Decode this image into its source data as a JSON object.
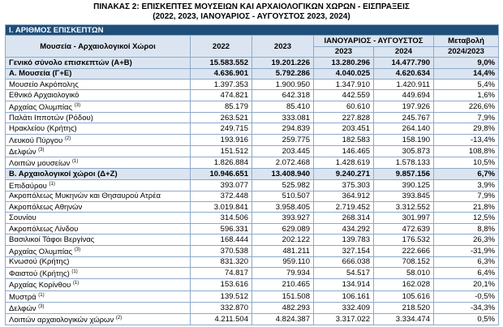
{
  "header": {
    "title": "ΠΙΝΑΚΑΣ 2: ΕΠΙΣΚΕΠΤΕΣ ΜΟΥΣΕΙΩΝ ΚΑΙ ΑΡΧΑΙΟΛΟΓΙΚΩΝ ΧΩΡΩΝ - ΕΙΣΠΡΑΞΕΙΣ",
    "subtitle": "(2022, 2023, ΙΑΝΟΥΑΡΙΟΣ - ΑΥΓΟΥΣΤΟΣ 2023, 2024)"
  },
  "table": {
    "section": "I. ΑΡΙΘΜΟΣ ΕΠΙΣΚΕΠΤΩΝ",
    "columns": {
      "name": "Μουσεία - Αρχαιολογικοί Χώροι",
      "y2022": "2022",
      "y2023": "2023",
      "period": "ΙΑΝΟΥΑΡΙΟΣ - ΑΥΓΟΥΣΤΟΣ",
      "p2023": "2023",
      "p2024": "2024",
      "change": "Μεταβολή",
      "change_period": "2024/2023"
    },
    "rows": [
      {
        "name": "Γενικό σύνολο επισκεπτών (Α+Β)",
        "cells": [
          "15.583.552",
          "19.201.226",
          "13.280.296",
          "14.477.790",
          "9,0%"
        ]
      },
      {
        "name": "Α. Μουσεία (Γ+Ε)",
        "cells": [
          "4.636.901",
          "5.792.286",
          "4.040.025",
          "4.620.634",
          "14,4%"
        ]
      },
      {
        "name": "Μουσείο Ακρόπολης",
        "cells": [
          "1.397.353",
          "1.900.950",
          "1.347.910",
          "1.420.911",
          "5,4%"
        ]
      },
      {
        "name": "Εθνικό Αρχαιολογικό",
        "cells": [
          "474.821",
          "642.318",
          "442.559",
          "449.694",
          "1,6%"
        ]
      },
      {
        "name": "Αρχαίας Ολυμπίας",
        "note": "(3)",
        "cells": [
          "85.179",
          "85.410",
          "60.610",
          "197.926",
          "226,6%"
        ]
      },
      {
        "name": "Παλάτι Ιπποτών (Ρόδου)",
        "cells": [
          "263.521",
          "333.081",
          "227.828",
          "245.767",
          "7,9%"
        ]
      },
      {
        "name": "Ηρακλείου (Κρήτης)",
        "cells": [
          "249.715",
          "294.839",
          "203.451",
          "264.140",
          "29,8%"
        ]
      },
      {
        "name": "Λευκού Πύργου",
        "note": "(2)",
        "cells": [
          "193.916",
          "259.775",
          "182.583",
          "158.190",
          "-13,4%"
        ]
      },
      {
        "name": "Δελφών",
        "note": "(3)",
        "cells": [
          "151.512",
          "203.445",
          "146.465",
          "305.873",
          "108,8%"
        ]
      },
      {
        "name": "Λοιπών μουσείων",
        "note": "(1)",
        "cells": [
          "1.826.884",
          "2.072.468",
          "1.428.619",
          "1.578.133",
          "10,5%"
        ]
      },
      {
        "name": "Β. Αρχαιολογικοί χώροι (Δ+Ζ)",
        "cells": [
          "10.946.651",
          "13.408.940",
          "9.240.271",
          "9.857.156",
          "6,7%"
        ]
      },
      {
        "name": "Επιδαύρου",
        "note": "(1)",
        "cells": [
          "393.077",
          "525.982",
          "375.303",
          "390.125",
          "3,9%"
        ]
      },
      {
        "name": "Ακροπόλεως Μυκηνών και Θησαυρού Ατρέα",
        "cells": [
          "372.448",
          "510.507",
          "364.912",
          "393.845",
          "7,9%"
        ]
      },
      {
        "name": "Ακροπόλεως Αθηνών",
        "cells": [
          "3.019.841",
          "3.958.405",
          "2.719.452",
          "3.312.552",
          "21,8%"
        ]
      },
      {
        "name": "Σουνίου",
        "cells": [
          "314.506",
          "393.927",
          "268.314",
          "301.997",
          "12,5%"
        ]
      },
      {
        "name": "Ακροπόλεως Λίνδου",
        "cells": [
          "596.331",
          "629.089",
          "434.292",
          "472.639",
          "8,8%"
        ]
      },
      {
        "name": "Βασιλικοί Τάφοι Βεργίνας",
        "cells": [
          "168.444",
          "202.122",
          "139.783",
          "176.532",
          "26,3%"
        ]
      },
      {
        "name": "Αρχαίας Ολυμπίας",
        "note": "(3)",
        "cells": [
          "370.538",
          "481.211",
          "327.154",
          "222.666",
          "-31,9%"
        ]
      },
      {
        "name": "Κνωσού (Κρήτης)",
        "cells": [
          "831.320",
          "959.110",
          "666.038",
          "708.152",
          "6,3%"
        ]
      },
      {
        "name": "Φαιστού (Κρήτης)",
        "note": "(1)",
        "cells": [
          "74.817",
          "79.934",
          "54.517",
          "58.010",
          "6,4%"
        ]
      },
      {
        "name": "Αρχαίας Κορίνθου",
        "note": "(1)",
        "cells": [
          "153.616",
          "210.465",
          "134.914",
          "162.028",
          "20,1%"
        ]
      },
      {
        "name": "Μυστρά",
        "note": "(1)",
        "cells": [
          "139.512",
          "151.508",
          "106.161",
          "105.616",
          "-0,5%"
        ]
      },
      {
        "name": "Δελφών",
        "note": "(3)",
        "cells": [
          "332.870",
          "482.293",
          "332.409",
          "218.520",
          "-34,3%"
        ]
      },
      {
        "name": "Λοιπών αρχαιολογικών χώρων",
        "note": "(2)",
        "cells": [
          "4.211.504",
          "4.824.387",
          "3.317.022",
          "3.334.474",
          "0,5%"
        ]
      }
    ]
  }
}
